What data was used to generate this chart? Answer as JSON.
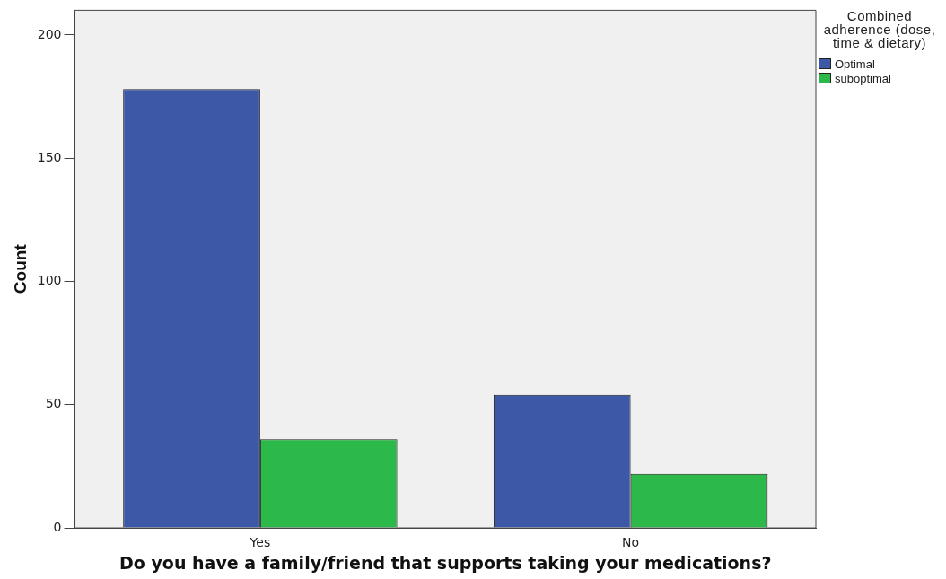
{
  "chart_data": {
    "type": "bar",
    "xlabel": "Do you have a family/friend that supports taking your medications?",
    "ylabel": "Count",
    "legend_title": "Combined adherence (dose, time & dietary)",
    "legend": "top right",
    "grid": false,
    "categories": [
      "Yes",
      "No"
    ],
    "series": [
      {
        "name": "Optimal",
        "color": "#3e58a8",
        "values": [
          178,
          54
        ]
      },
      {
        "name": "suboptimal",
        "color": "#2db84a",
        "values": [
          36,
          22
        ]
      }
    ],
    "ylim": [
      0,
      210
    ],
    "yticks": [
      0,
      50,
      100,
      150,
      200
    ]
  }
}
